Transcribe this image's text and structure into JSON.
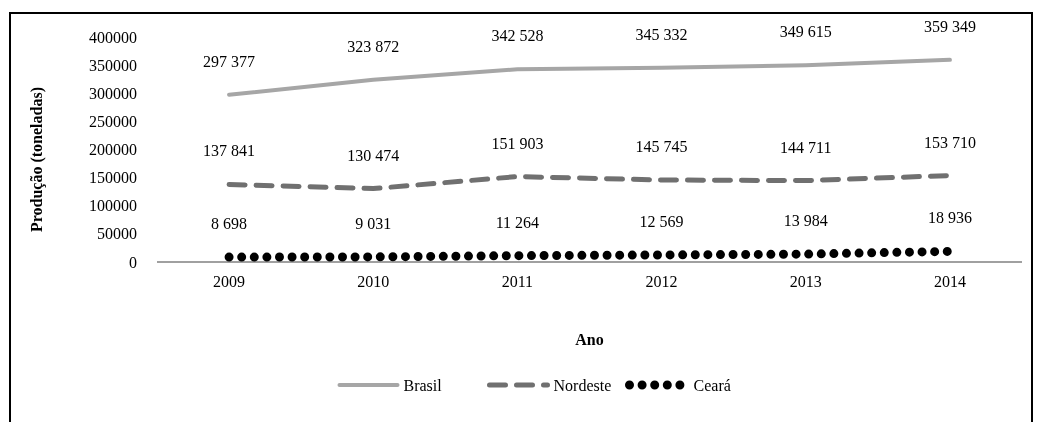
{
  "chart_data": {
    "type": "line",
    "xlabel": "Ano",
    "ylabel": "Produção (toneladas)",
    "categories": [
      "2009",
      "2010",
      "2011",
      "2012",
      "2013",
      "2014"
    ],
    "series": [
      {
        "name": "Brasil",
        "color": "#a6a6a6",
        "line_style": "solid",
        "values": [
          297377,
          323872,
          342528,
          345332,
          349615,
          359349
        ],
        "value_labels": [
          "297 377",
          "323 872",
          "342 528",
          "345 332",
          "349 615",
          "359 349"
        ]
      },
      {
        "name": "Nordeste",
        "color": "#707070",
        "line_style": "dashed",
        "values": [
          137841,
          130474,
          151903,
          145745,
          144711,
          153710
        ],
        "value_labels": [
          "137 841",
          "130 474",
          "151 903",
          "145 745",
          "144 711",
          "153 710"
        ]
      },
      {
        "name": "Ceará",
        "color": "#000000",
        "line_style": "dotted",
        "values": [
          8698,
          9031,
          11264,
          12569,
          13984,
          18936
        ],
        "value_labels": [
          "8 698",
          "9 031",
          "11 264",
          "12 569",
          "13 984",
          "18 936"
        ]
      }
    ],
    "ylim": [
      0,
      400000
    ],
    "yticks": [
      0,
      50000,
      100000,
      150000,
      200000,
      250000,
      300000,
      350000,
      400000
    ],
    "grid": false,
    "legend": "bottom",
    "marker": "none"
  }
}
